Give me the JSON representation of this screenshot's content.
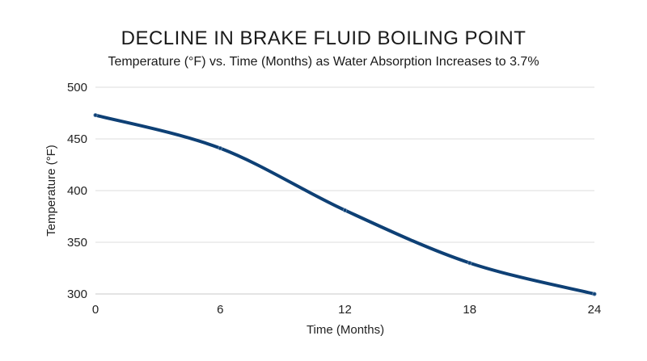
{
  "chart_data": {
    "type": "line",
    "title": "DECLINE IN BRAKE FLUID BOILING POINT",
    "subtitle": "Temperature (°F) vs. Time (Months) as Water Absorption Increases to 3.7%",
    "xlabel": "Time (Months)",
    "ylabel": "Temperature (°F)",
    "x": [
      0,
      6,
      12,
      18,
      24
    ],
    "series": [
      {
        "values": [
          473,
          441,
          381,
          330,
          300
        ]
      }
    ],
    "xlim": [
      0,
      24
    ],
    "ylim": [
      300,
      500
    ],
    "xticks": [
      "0",
      "6",
      "12",
      "18",
      "24"
    ],
    "yticks": [
      "300",
      "350",
      "400",
      "450",
      "500"
    ],
    "grid": "horizontal",
    "legend": "none",
    "line_color": "#0e4075"
  }
}
